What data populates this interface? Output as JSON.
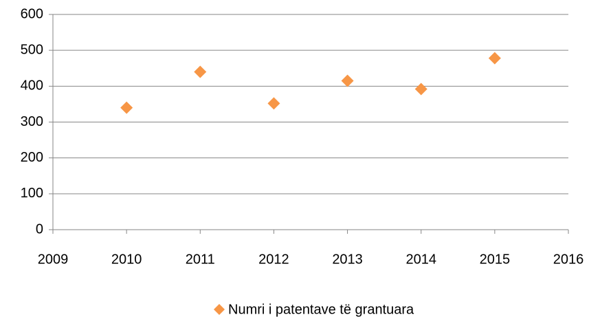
{
  "chart_data": {
    "type": "scatter",
    "x": [
      2010,
      2011,
      2012,
      2013,
      2014,
      2015
    ],
    "series": [
      {
        "name": "Numri i patentave të grantuara",
        "color": "#f79646",
        "values": [
          340,
          440,
          352,
          415,
          392,
          478
        ]
      }
    ],
    "xlim": [
      2009,
      2016
    ],
    "xticks": [
      2009,
      2010,
      2011,
      2012,
      2013,
      2014,
      2015,
      2016
    ],
    "ylim": [
      0,
      600
    ],
    "yticks": [
      0,
      100,
      200,
      300,
      400,
      500,
      600
    ],
    "grid": true,
    "legend": "bottom"
  }
}
